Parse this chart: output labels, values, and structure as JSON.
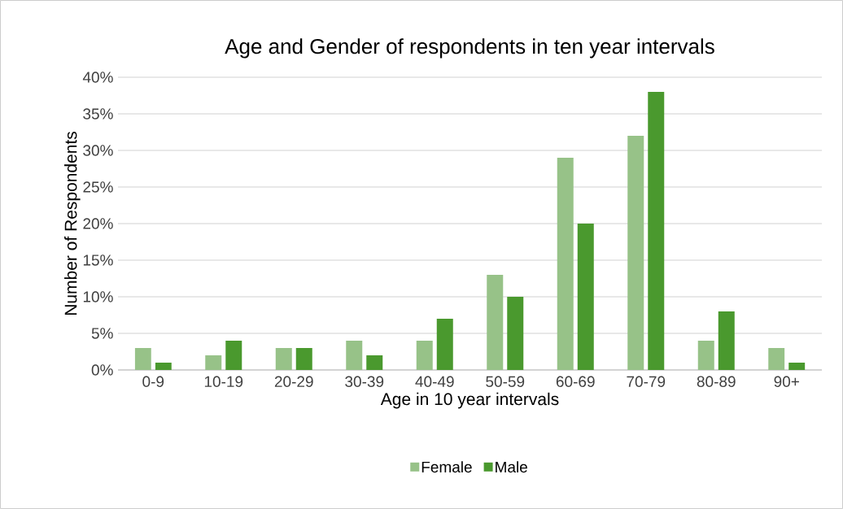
{
  "chart_data": {
    "type": "bar",
    "title": "Age and Gender of respondents in ten year intervals",
    "xlabel": "Age in 10 year intervals",
    "ylabel": "Number of Respondents",
    "categories": [
      "0-9",
      "10-19",
      "20-29",
      "30-39",
      "40-49",
      "50-59",
      "60-69",
      "70-79",
      "80-89",
      "90+"
    ],
    "series": [
      {
        "name": "Female",
        "color": "#97c288",
        "values": [
          3,
          2,
          3,
          4,
          4,
          13,
          29,
          32,
          4,
          3
        ]
      },
      {
        "name": "Male",
        "color": "#4a992e",
        "values": [
          1,
          4,
          3,
          2,
          7,
          10,
          20,
          38,
          8,
          1
        ]
      }
    ],
    "ylim": [
      0,
      40
    ],
    "yticks": [
      {
        "value": 0,
        "label": "0%"
      },
      {
        "value": 5,
        "label": "5%"
      },
      {
        "value": 10,
        "label": "10%"
      },
      {
        "value": 15,
        "label": "15%"
      },
      {
        "value": 20,
        "label": "20%"
      },
      {
        "value": 25,
        "label": "25%"
      },
      {
        "value": 30,
        "label": "30%"
      },
      {
        "value": 35,
        "label": "35%"
      },
      {
        "value": 40,
        "label": "40%"
      }
    ],
    "grid": "y",
    "legend": "bottom"
  }
}
